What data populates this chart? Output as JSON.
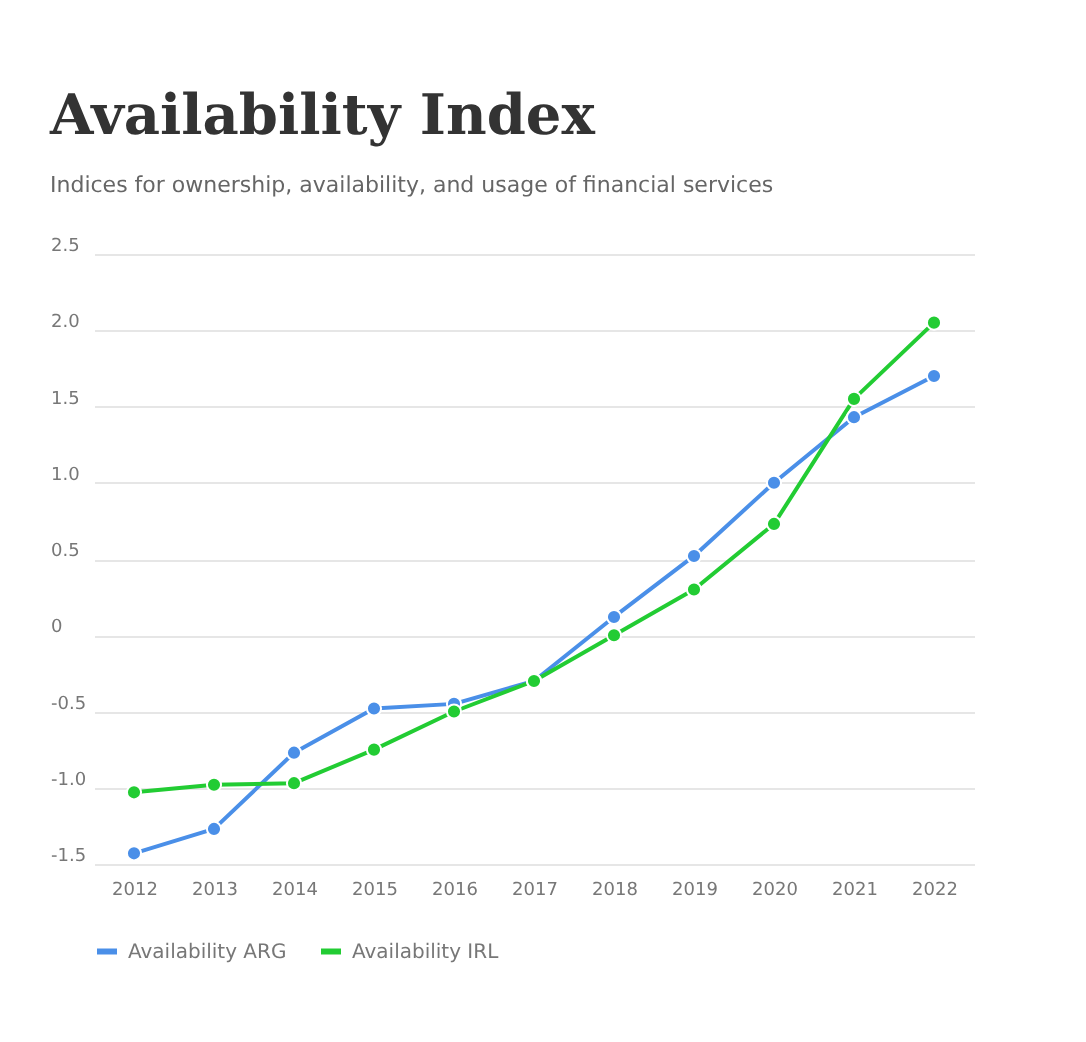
{
  "chart_data": {
    "type": "line",
    "title": "Availability Index",
    "subtitle": "Indices for ownership, availability, and usage of financial services",
    "categories": [
      "2012",
      "2013",
      "2014",
      "2015",
      "2016",
      "2017",
      "2018",
      "2019",
      "2020",
      "2021",
      "2022"
    ],
    "series": [
      {
        "name": "Availability ARG",
        "color": "#4a8fe8",
        "values": [
          -1.43,
          -1.27,
          -0.77,
          -0.48,
          -0.45,
          -0.3,
          0.12,
          0.52,
          1.0,
          1.43,
          1.7
        ]
      },
      {
        "name": "Availability IRL",
        "color": "#22cc33",
        "values": [
          -1.03,
          -0.98,
          -0.97,
          -0.75,
          -0.5,
          -0.3,
          0.0,
          0.3,
          0.73,
          1.55,
          2.05
        ]
      }
    ],
    "ylim": [
      -1.5,
      2.5
    ],
    "yticks": [
      {
        "value": -1.5,
        "label": "-1.5"
      },
      {
        "value": -1,
        "label": "-1.0"
      },
      {
        "value": -0.5,
        "label": "-0.5"
      },
      0,
      {
        "value": 0.5,
        "label": "0.5"
      },
      {
        "value": 1,
        "label": "1.0"
      },
      {
        "value": 1.5,
        "label": "1.5"
      },
      {
        "value": 2,
        "label": "2.0"
      },
      {
        "value": 2.5,
        "label": "2.5"
      }
    ],
    "grid": "y",
    "legend": "bottom",
    "marker": "circle",
    "line_style": "solid"
  }
}
